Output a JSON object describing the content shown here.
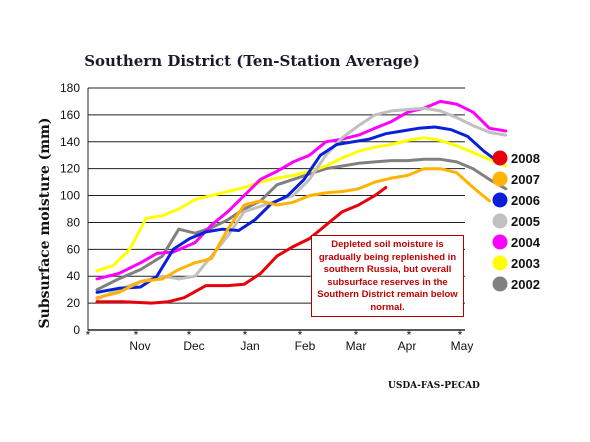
{
  "chart_data": {
    "type": "line",
    "title": "Southern District (Ten-Station Average)",
    "ylabel": "Subsurface moisture (mm)",
    "xlabel": "",
    "ylim": [
      0,
      180
    ],
    "yticks": [
      "0",
      "20",
      "40",
      "60",
      "80",
      "100",
      "120",
      "140",
      "160",
      "180"
    ],
    "xticks": [
      "Nov",
      "Dec",
      "Jan",
      "Feb",
      "Mar",
      "Apr",
      "May"
    ],
    "x_unit": "months since mid-October",
    "grid": true,
    "legend_position": "right",
    "series": [
      {
        "name": "2008",
        "color": "#e8000b",
        "x": [
          0,
          0.5,
          1,
          1.3,
          1.6,
          2,
          2.4,
          2.7,
          3,
          3.3,
          3.6,
          3.9,
          4.2,
          4.5,
          4.8,
          5.1,
          5.3
        ],
        "values": [
          21,
          21,
          20,
          21,
          24,
          33,
          33,
          34,
          42,
          55,
          62,
          68,
          78,
          88,
          93,
          100,
          106
        ]
      },
      {
        "name": "2007",
        "color": "#ffb300",
        "x": [
          0,
          0.4,
          0.8,
          1.2,
          1.5,
          1.8,
          2.1,
          2.4,
          2.7,
          3,
          3.3,
          3.6,
          3.9,
          4.2,
          4.5,
          4.8,
          5.1,
          5.4,
          5.7,
          6,
          6.3,
          6.6,
          6.9,
          7.2
        ],
        "values": [
          24,
          28,
          36,
          38,
          45,
          50,
          53,
          75,
          93,
          96,
          93,
          95,
          100,
          102,
          103,
          105,
          110,
          113,
          115,
          120,
          120,
          117,
          106,
          96
        ]
      },
      {
        "name": "2006",
        "color": "#0a1fd9",
        "x": [
          0,
          0.4,
          0.8,
          1.1,
          1.4,
          1.7,
          2,
          2.3,
          2.6,
          2.9,
          3.2,
          3.5,
          3.8,
          4.1,
          4.4,
          4.7,
          5,
          5.3,
          5.6,
          5.9,
          6.2,
          6.5,
          6.8,
          7.1,
          7.4
        ],
        "values": [
          28,
          31,
          32,
          40,
          60,
          68,
          73,
          75,
          74,
          82,
          94,
          100,
          112,
          130,
          138,
          140,
          142,
          146,
          148,
          150,
          151,
          149,
          144,
          133,
          124
        ]
      },
      {
        "name": "2005",
        "color": "#c0c0c0",
        "x": [
          0,
          0.4,
          0.8,
          1.2,
          1.5,
          1.8,
          2.1,
          2.4,
          2.7,
          3,
          3.3,
          3.6,
          3.9,
          4.2,
          4.5,
          4.8,
          5.1,
          5.4,
          5.7,
          6,
          6.3,
          6.6,
          6.9,
          7.2,
          7.5
        ],
        "values": [
          23,
          30,
          36,
          40,
          38,
          40,
          55,
          70,
          88,
          92,
          96,
          100,
          112,
          130,
          143,
          152,
          160,
          163,
          164,
          165,
          163,
          158,
          152,
          147,
          145
        ]
      },
      {
        "name": "2004",
        "color": "#ff00ff",
        "x": [
          0,
          0.4,
          0.8,
          1.1,
          1.4,
          1.8,
          2.1,
          2.4,
          2.7,
          3,
          3.3,
          3.6,
          3.9,
          4.2,
          4.5,
          4.8,
          5.1,
          5.4,
          5.7,
          6,
          6.3,
          6.6,
          6.9,
          7.2,
          7.5
        ],
        "values": [
          38,
          42,
          50,
          57,
          58,
          65,
          78,
          88,
          100,
          112,
          118,
          125,
          130,
          140,
          142,
          145,
          150,
          155,
          162,
          165,
          170,
          168,
          162,
          150,
          148
        ]
      },
      {
        "name": "2003",
        "color": "#ffff00",
        "x": [
          0,
          0.3,
          0.6,
          0.9,
          1.2,
          1.5,
          1.8,
          2.1,
          2.4,
          2.7,
          3,
          3.3,
          3.6,
          3.9,
          4.2,
          4.5,
          4.8,
          5.1,
          5.4,
          5.7,
          6,
          6.3,
          6.6,
          6.9,
          7.2,
          7.5
        ],
        "values": [
          44,
          48,
          60,
          83,
          85,
          90,
          97,
          100,
          103,
          106,
          110,
          113,
          115,
          118,
          122,
          128,
          133,
          136,
          138,
          141,
          143,
          141,
          137,
          132,
          127,
          122
        ]
      },
      {
        "name": "2002",
        "color": "#808080",
        "x": [
          0,
          0.4,
          0.8,
          1.2,
          1.5,
          1.8,
          2.1,
          2.4,
          2.7,
          3,
          3.3,
          3.6,
          3.9,
          4.2,
          4.5,
          4.8,
          5.1,
          5.4,
          5.7,
          6,
          6.3,
          6.6,
          6.9,
          7.2,
          7.5
        ],
        "values": [
          30,
          38,
          45,
          55,
          75,
          72,
          76,
          82,
          90,
          96,
          108,
          112,
          116,
          120,
          122,
          124,
          125,
          126,
          126,
          127,
          127,
          125,
          120,
          112,
          105
        ]
      }
    ],
    "annotation": "Depleted soil moisture is gradually being replenished in southern Russia, but overall subsurface reserves in the Southern District remain below normal.",
    "source": "USDA-FAS-PECAD"
  }
}
